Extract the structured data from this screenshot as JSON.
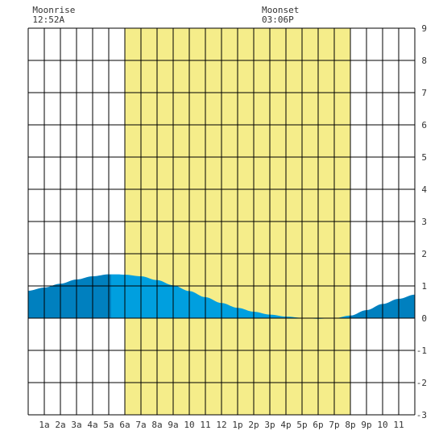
{
  "moon_events": [
    {
      "label": "Moonrise",
      "time": "12:52A",
      "hour": 0.87
    },
    {
      "label": "Moonset",
      "time": "03:06P",
      "hour": 15.1
    }
  ],
  "chart_data": {
    "type": "area",
    "title": "",
    "xlabel": "",
    "ylabel": "",
    "x_range": [
      0,
      24
    ],
    "ylim": [
      -3,
      9
    ],
    "x_tick_labels": [
      "1a",
      "2a",
      "3a",
      "4a",
      "5a",
      "6a",
      "7a",
      "8a",
      "9a",
      "10",
      "11",
      "12",
      "1p",
      "2p",
      "3p",
      "4p",
      "5p",
      "6p",
      "7p",
      "8p",
      "9p",
      "10",
      "11"
    ],
    "y_tick_labels": [
      "9",
      "8",
      "7",
      "6",
      "5",
      "4",
      "3",
      "2",
      "1",
      "0",
      "-1",
      "-2",
      "-3"
    ],
    "daylight": {
      "start_hour": 6,
      "end_hour": 20,
      "color": "#f5ed8a"
    },
    "night_shade_color": "#0080bf",
    "day_shade_color": "#009fdf",
    "grid": true,
    "series": [
      {
        "x": [
          0,
          1,
          2,
          3,
          4,
          5,
          5.5,
          6,
          7,
          8,
          9,
          10,
          11,
          12,
          13,
          14,
          15,
          16,
          17,
          18,
          19,
          20,
          21,
          22,
          23,
          24
        ],
        "values": [
          0.85,
          0.95,
          1.07,
          1.2,
          1.3,
          1.36,
          1.36,
          1.35,
          1.3,
          1.18,
          1.02,
          0.84,
          0.65,
          0.47,
          0.32,
          0.2,
          0.11,
          0.05,
          0.01,
          -0.02,
          0.0,
          0.08,
          0.25,
          0.44,
          0.6,
          0.73
        ]
      }
    ]
  }
}
